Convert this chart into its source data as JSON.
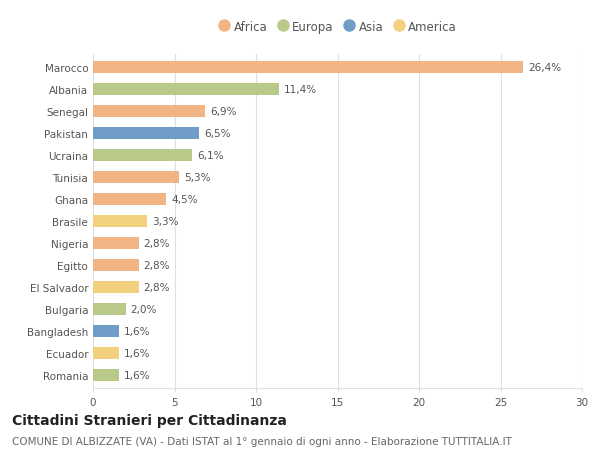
{
  "countries": [
    "Marocco",
    "Albania",
    "Senegal",
    "Pakistan",
    "Ucraina",
    "Tunisia",
    "Ghana",
    "Brasile",
    "Nigeria",
    "Egitto",
    "El Salvador",
    "Bulgaria",
    "Bangladesh",
    "Ecuador",
    "Romania"
  ],
  "values": [
    26.4,
    11.4,
    6.9,
    6.5,
    6.1,
    5.3,
    4.5,
    3.3,
    2.8,
    2.8,
    2.8,
    2.0,
    1.6,
    1.6,
    1.6
  ],
  "labels": [
    "26,4%",
    "11,4%",
    "6,9%",
    "6,5%",
    "6,1%",
    "5,3%",
    "4,5%",
    "3,3%",
    "2,8%",
    "2,8%",
    "2,8%",
    "2,0%",
    "1,6%",
    "1,6%",
    "1,6%"
  ],
  "continents": [
    "Africa",
    "Europa",
    "Africa",
    "Asia",
    "Europa",
    "Africa",
    "Africa",
    "America",
    "Africa",
    "Africa",
    "America",
    "Europa",
    "Asia",
    "America",
    "Europa"
  ],
  "colors": {
    "Africa": "#F2B482",
    "Europa": "#B8C98A",
    "Asia": "#6F9DC8",
    "America": "#F2D080"
  },
  "xlim": [
    0,
    30
  ],
  "xticks": [
    0,
    5,
    10,
    15,
    20,
    25,
    30
  ],
  "title": "Cittadini Stranieri per Cittadinanza",
  "subtitle": "COMUNE DI ALBIZZATE (VA) - Dati ISTAT al 1° gennaio di ogni anno - Elaborazione TUTTITALIA.IT",
  "background_color": "#ffffff",
  "bar_height": 0.55,
  "title_fontsize": 10,
  "subtitle_fontsize": 7.5,
  "label_fontsize": 7.5,
  "tick_fontsize": 7.5,
  "legend_fontsize": 8.5,
  "grid_color": "#e0e0e0"
}
